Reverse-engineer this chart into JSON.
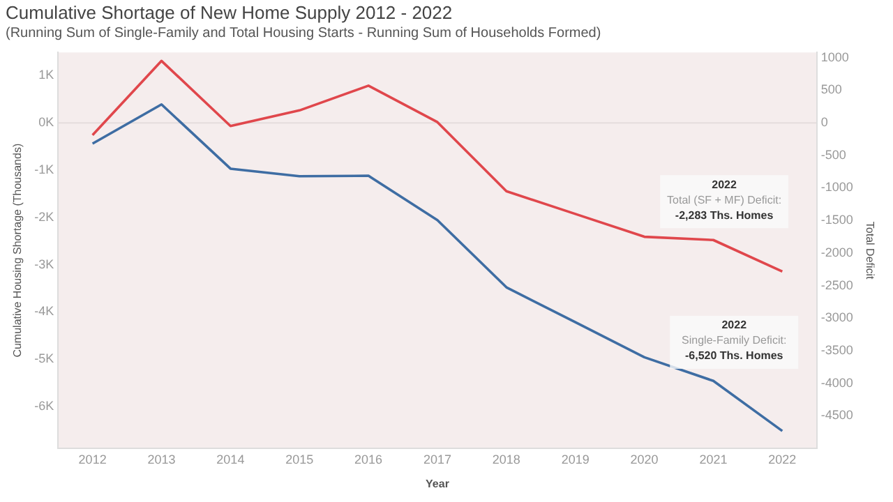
{
  "chart_data": {
    "type": "line",
    "title": "Cumulative Shortage of New Home Supply 2012 - 2022",
    "subtitle": "(Running Sum of Single-Family and Total Housing Starts - Running Sum of Households Formed)",
    "xlabel": "Year",
    "ylabel": "Cumulative Housing Shortage (Thousands)",
    "y2label": "Total Deficit",
    "categories": [
      "2012",
      "2013",
      "2014",
      "2015",
      "2016",
      "2017",
      "2018",
      "2019",
      "2020",
      "2021",
      "2022"
    ],
    "series": [
      {
        "color": "#3e6da3",
        "values": [
          -440,
          390,
          -970,
          -1130,
          -1120,
          -2060,
          -3480,
          -4220,
          -4960,
          -5460,
          -6520
        ]
      },
      {
        "color": "#e0474c",
        "axis": "y2",
        "values": [
          -190,
          950,
          -50,
          190,
          570,
          10,
          -1050,
          -1400,
          -1750,
          -1800,
          -2283
        ]
      }
    ],
    "ylim": [
      -6890,
      1490
    ],
    "yticks": [
      {
        "value": -6000,
        "label": "-6K"
      },
      {
        "value": -5000,
        "label": "-5K"
      },
      {
        "value": -4000,
        "label": "-4K"
      },
      {
        "value": -3000,
        "label": "-3K"
      },
      {
        "value": -2000,
        "label": "-2K"
      },
      {
        "value": -1000,
        "label": "-1K"
      },
      {
        "value": 0,
        "label": "0K"
      },
      {
        "value": 1000,
        "label": "1K"
      }
    ],
    "y2lim": [
      -5000,
      1080
    ],
    "y2ticks": [
      -4500,
      -4000,
      -3500,
      -3000,
      -2500,
      -2000,
      -1500,
      -1000,
      -500,
      0,
      500,
      1000
    ],
    "ref_lines": [
      {
        "axis": "y",
        "value": 0,
        "color": "#e4dcdc"
      }
    ],
    "annotations": [
      "2022\nTotal (SF + MF) Deficit:\n-2,283 Ths. Homes",
      "2022\nSingle-Family Deficit:\n-6,520 Ths. Homes"
    ],
    "grid": false,
    "legend": false,
    "marker": "none",
    "line_style": "solid"
  }
}
